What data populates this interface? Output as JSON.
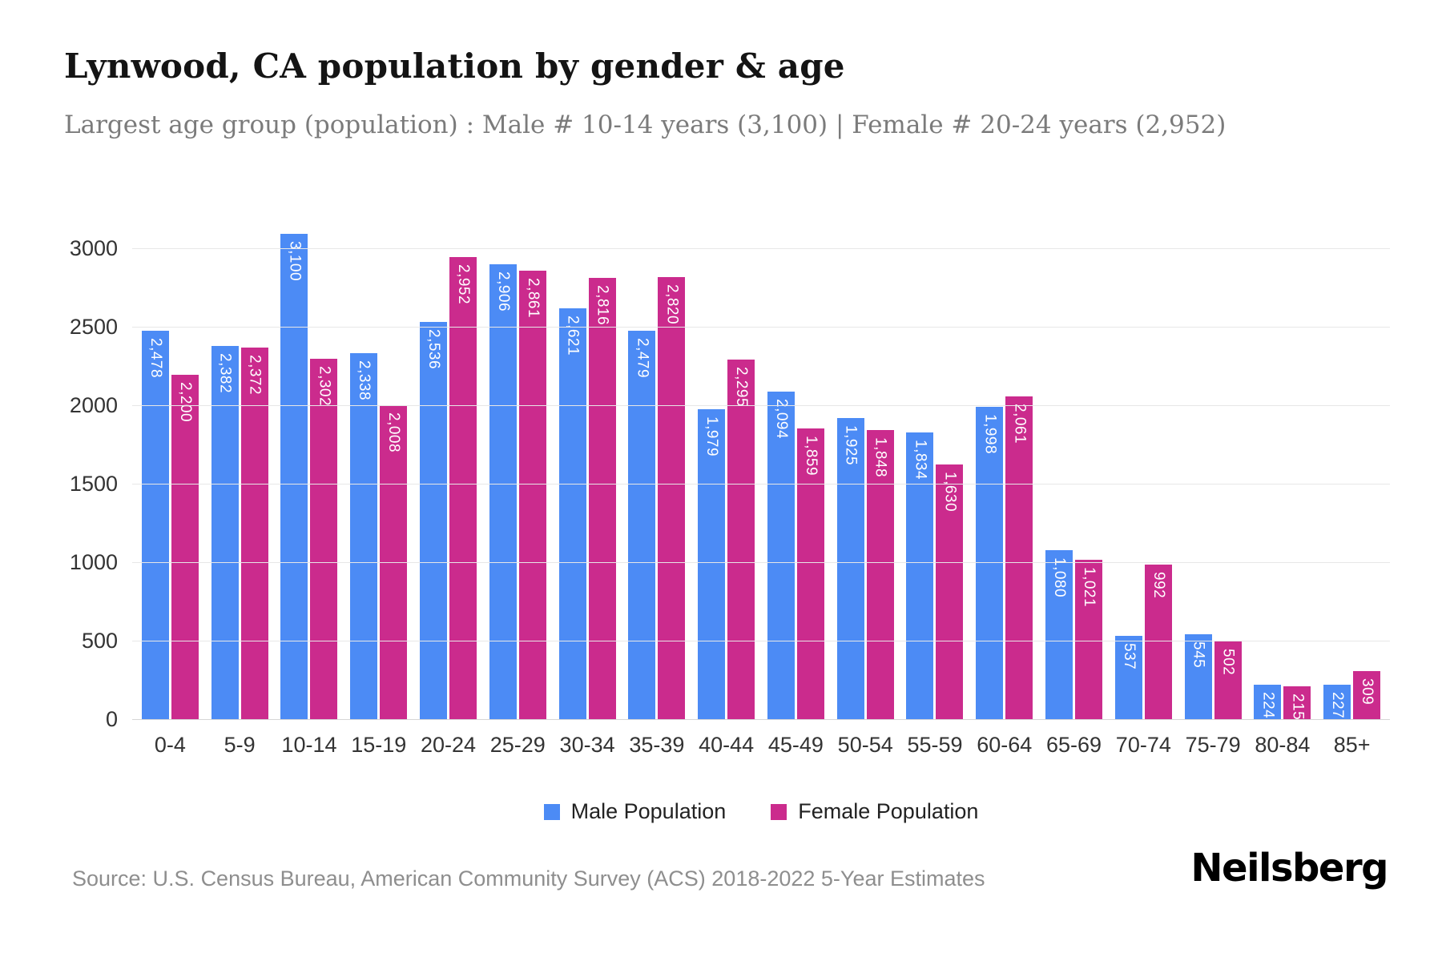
{
  "header": {
    "title": "Lynwood, CA population by gender & age",
    "subtitle": "Largest age group (population) : Male # 10-14 years (3,100) | Female # 20-24 years (2,952)"
  },
  "chart_data": {
    "type": "bar",
    "title": "Lynwood, CA population by gender & age",
    "xlabel": "",
    "ylabel": "",
    "ylim": [
      0,
      3200
    ],
    "yticks": [
      0,
      500,
      1000,
      1500,
      2000,
      2500,
      3000
    ],
    "grid": true,
    "legend_position": "bottom",
    "categories": [
      "0-4",
      "5-9",
      "10-14",
      "15-19",
      "20-24",
      "25-29",
      "30-34",
      "35-39",
      "40-44",
      "45-49",
      "50-54",
      "55-59",
      "60-64",
      "65-69",
      "70-74",
      "75-79",
      "80-84",
      "85+"
    ],
    "series": [
      {
        "name": "Male Population",
        "color": "#4c8bf5",
        "values": [
          2478,
          2382,
          3100,
          2338,
          2536,
          2906,
          2621,
          2479,
          1979,
          2094,
          1925,
          1834,
          1998,
          1080,
          537,
          545,
          224,
          227
        ],
        "labels": [
          "2,478",
          "2,382",
          "3,100",
          "2,338",
          "2,536",
          "2,906",
          "2,621",
          "2,479",
          "1,979",
          "2,094",
          "1,925",
          "1,834",
          "1,998",
          "1,080",
          "537",
          "545",
          "224",
          "227"
        ]
      },
      {
        "name": "Female Population",
        "color": "#cb2b8d",
        "values": [
          2200,
          2372,
          2302,
          2008,
          2952,
          2861,
          2816,
          2820,
          2295,
          1859,
          1848,
          1630,
          2061,
          1021,
          992,
          502,
          215,
          309
        ],
        "labels": [
          "2,200",
          "2,372",
          "2,302",
          "2,008",
          "2,952",
          "2,861",
          "2,816",
          "2,820",
          "2,295",
          "1,859",
          "1,848",
          "1,630",
          "2,061",
          "1,021",
          "992",
          "502",
          "215",
          "309"
        ]
      }
    ]
  },
  "footer": {
    "source": "Source: U.S. Census Bureau, American Community Survey (ACS) 2018-2022 5-Year Estimates",
    "brand": "Neilsberg"
  }
}
